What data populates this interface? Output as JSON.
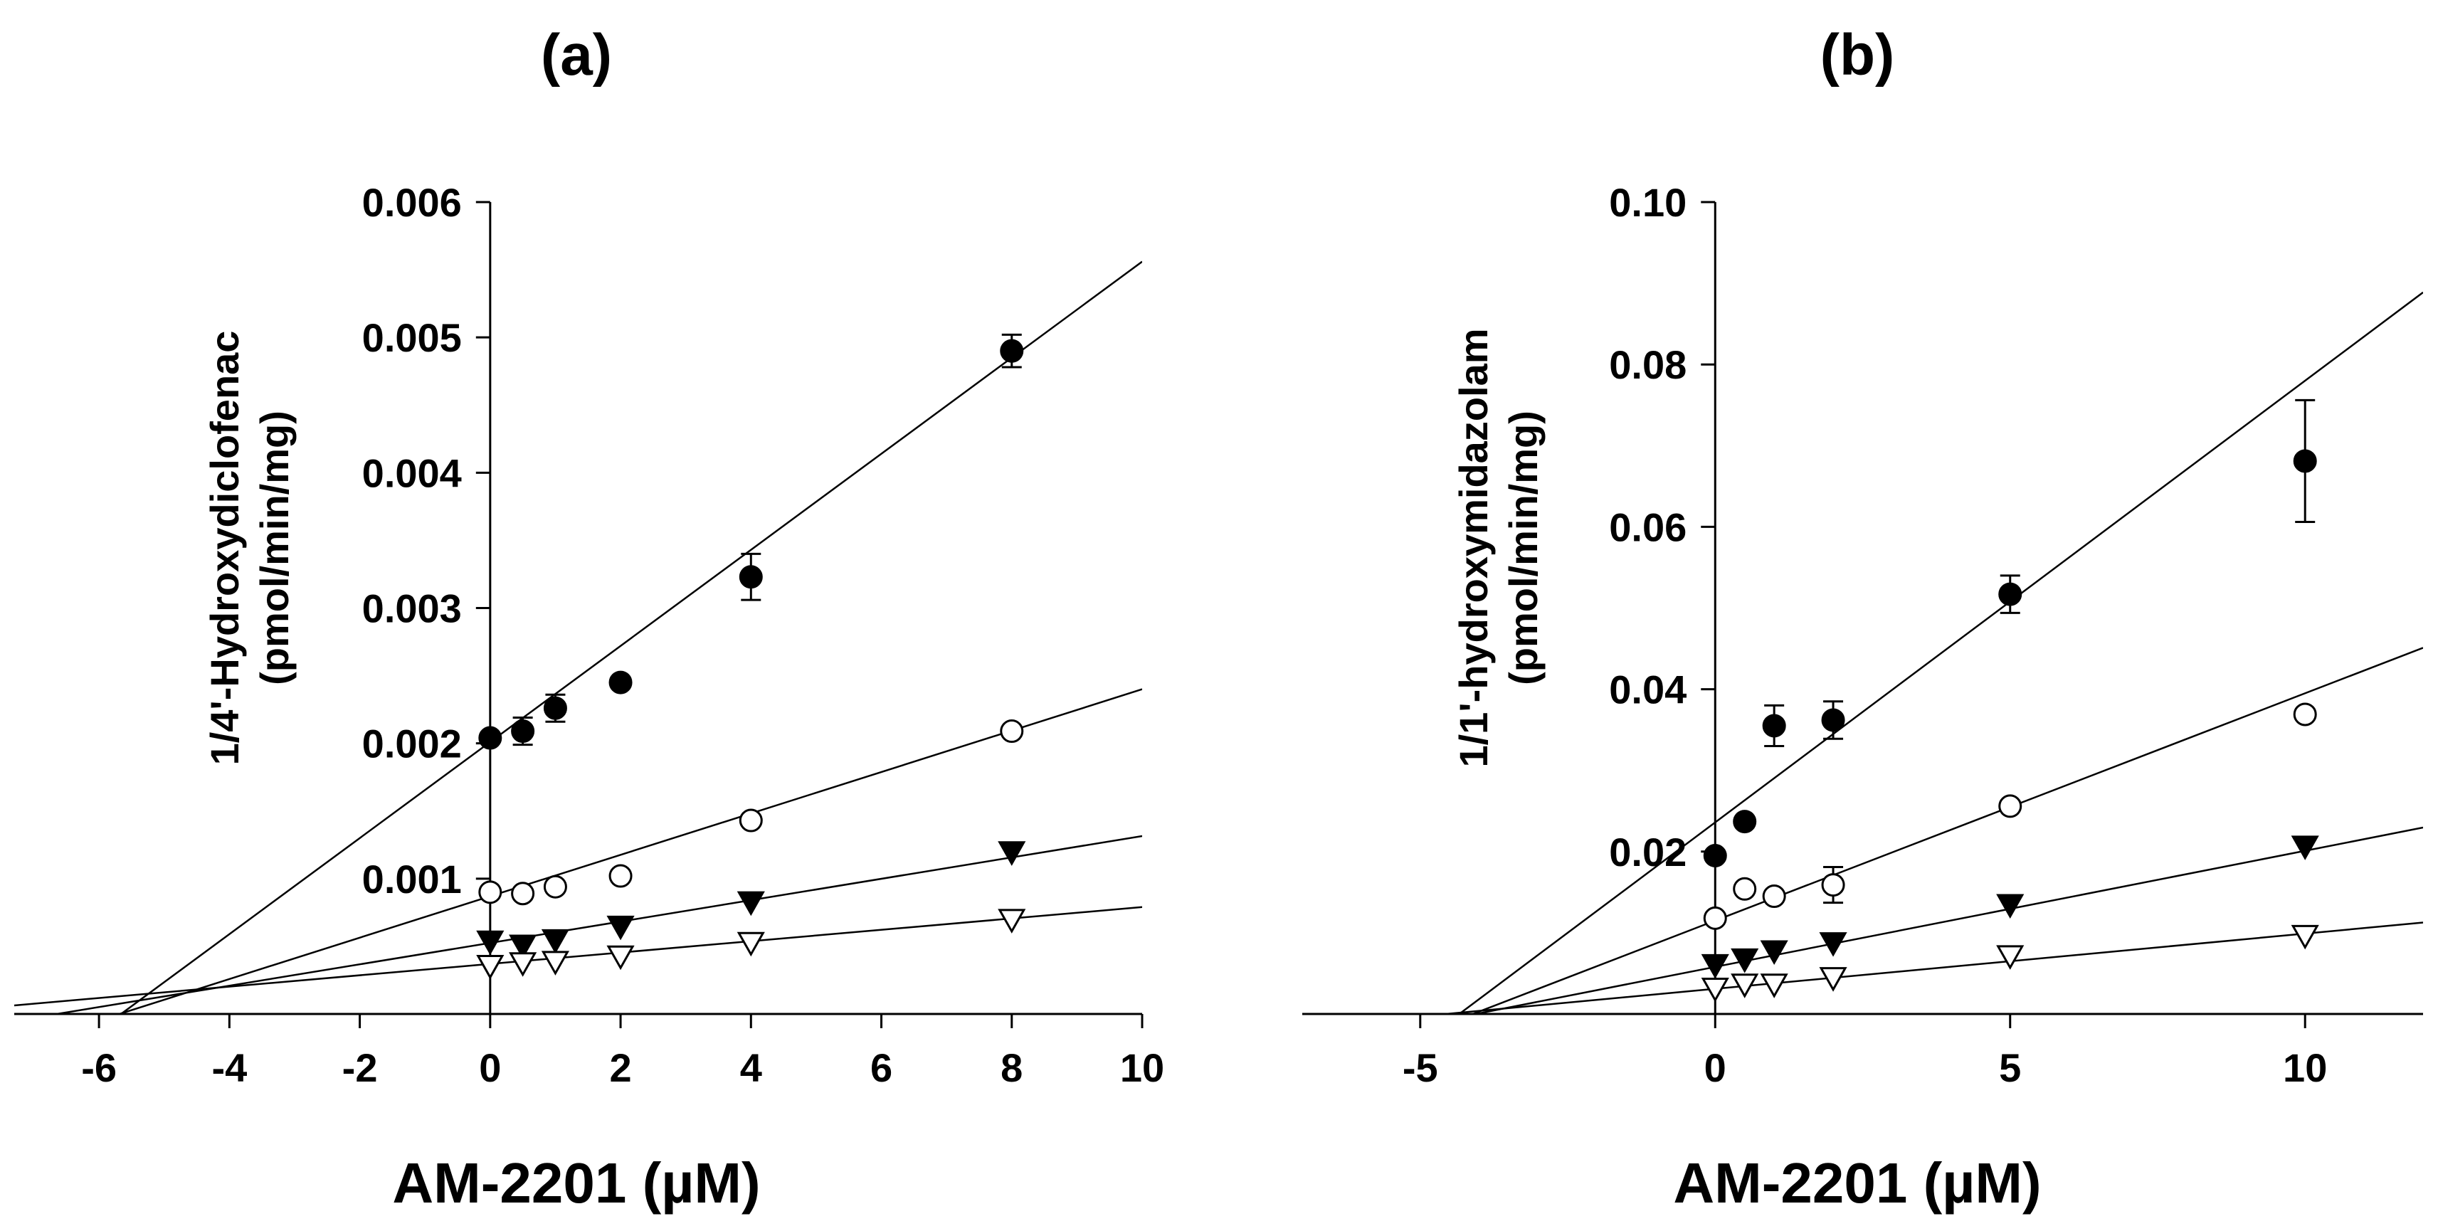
{
  "chart_data": [
    {
      "type": "scatter",
      "panel_label": "(a)",
      "xlabel": "AM-2201 (µM)",
      "ylabel_line1": "1/4'-Hydroxydiclofenac",
      "ylabel_line2": "(pmol/min/mg)",
      "xlim": [
        -7.3,
        10
      ],
      "ylim": [
        0,
        0.006
      ],
      "xticks": [
        -6,
        -4,
        -2,
        0,
        2,
        4,
        6,
        8,
        10
      ],
      "yticks": [
        0.001,
        0.002,
        0.003,
        0.004,
        0.005,
        0.006
      ],
      "ytick_labels": [
        "0.001",
        "0.002",
        "0.003",
        "0.004",
        "0.005",
        "0.006"
      ],
      "grid": false,
      "series": [
        {
          "name": "filled circle",
          "marker": "circle-filled",
          "x": [
            0,
            0.5,
            1,
            2,
            4,
            8
          ],
          "y": [
            0.00204,
            0.00209,
            0.00226,
            0.00245,
            0.00323,
            0.0049
          ],
          "err": [
            6e-05,
            0.0001,
            0.0001,
            4e-05,
            0.00017,
            0.00012
          ],
          "fit": {
            "slope": 0.000355,
            "intercept": 0.00201
          }
        },
        {
          "name": "open circle",
          "marker": "circle-open",
          "x": [
            0,
            0.5,
            1,
            2,
            4,
            8
          ],
          "y": [
            0.0009,
            0.00089,
            0.00094,
            0.00102,
            0.00143,
            0.00209
          ],
          "err": [
            3e-05,
            3e-05,
            3e-05,
            3e-05,
            3e-05,
            3e-05
          ],
          "fit": {
            "slope": 0.000153,
            "intercept": 0.00087
          }
        },
        {
          "name": "filled triangle",
          "marker": "triangle-filled",
          "x": [
            0,
            0.5,
            1,
            2,
            4,
            8
          ],
          "y": [
            0.00054,
            0.00051,
            0.00055,
            0.00065,
            0.00083,
            0.0012
          ],
          "err": [
            2e-05,
            2e-05,
            2e-05,
            2e-05,
            2e-05,
            2e-05
          ],
          "fit": {
            "slope": 7.9e-05,
            "intercept": 0.000525
          }
        },
        {
          "name": "open triangle",
          "marker": "triangle-open",
          "x": [
            0,
            0.5,
            1,
            2,
            4,
            8
          ],
          "y": [
            0.00036,
            0.00038,
            0.00039,
            0.00043,
            0.00053,
            0.0007
          ],
          "err": [
            2e-05,
            2e-05,
            2e-05,
            2e-05,
            2e-05,
            2e-05
          ],
          "fit": {
            "slope": 4.2e-05,
            "intercept": 0.00037
          }
        }
      ]
    },
    {
      "type": "scatter",
      "panel_label": "(b)",
      "xlabel": "AM-2201 (µM)",
      "ylabel_line1": "1/1'-hydroxymidazolam",
      "ylabel_line2": "(pmol/min/mg)",
      "xlim": [
        -7,
        12
      ],
      "ylim": [
        0,
        0.1
      ],
      "xticks": [
        -5,
        0,
        5,
        10
      ],
      "yticks": [
        0.02,
        0.04,
        0.06,
        0.08,
        0.1
      ],
      "ytick_labels": [
        "0.02",
        "0.04",
        "0.06",
        "0.08",
        "0.10"
      ],
      "grid": false,
      "series": [
        {
          "name": "filled circle",
          "marker": "circle-filled",
          "x": [
            0,
            0.5,
            1,
            2,
            5,
            10
          ],
          "y": [
            0.0195,
            0.0237,
            0.0355,
            0.0362,
            0.0517,
            0.0681
          ],
          "err": [
            0.0008,
            0.0012,
            0.0025,
            0.0023,
            0.0023,
            0.0075
          ],
          "fit": {
            "slope": 0.00544,
            "intercept": 0.0236
          }
        },
        {
          "name": "open circle",
          "marker": "circle-open",
          "x": [
            0,
            0.5,
            1,
            2,
            5,
            10
          ],
          "y": [
            0.0118,
            0.0154,
            0.0145,
            0.0159,
            0.0256,
            0.0369
          ],
          "err": [
            0.0006,
            0.0006,
            0.0008,
            0.0022,
            0.0008,
            0.0013
          ],
          "fit": {
            "slope": 0.0028,
            "intercept": 0.0115
          }
        },
        {
          "name": "filled triangle",
          "marker": "triangle-filled",
          "x": [
            0,
            0.5,
            1,
            2,
            5,
            10
          ],
          "y": [
            0.0061,
            0.0068,
            0.0078,
            0.0088,
            0.0135,
            0.0207
          ],
          "err": [
            0.0004,
            0.0004,
            0.0004,
            0.0004,
            0.0004,
            0.0004
          ],
          "fit": {
            "slope": 0.00143,
            "intercept": 0.0058
          }
        },
        {
          "name": "open triangle",
          "marker": "triangle-open",
          "x": [
            0,
            0.5,
            1,
            2,
            5,
            10
          ],
          "y": [
            0.0032,
            0.0037,
            0.0037,
            0.0045,
            0.0072,
            0.0097
          ],
          "err": [
            0.0003,
            0.0003,
            0.0003,
            0.0003,
            0.0003,
            0.0003
          ],
          "fit": {
            "slope": 0.00068,
            "intercept": 0.0031
          }
        }
      ]
    }
  ]
}
